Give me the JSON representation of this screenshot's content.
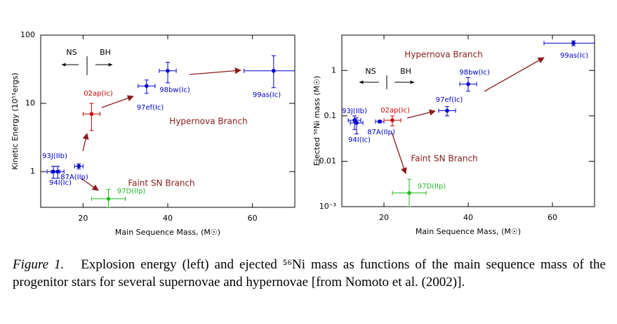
{
  "chart_data": [
    {
      "type": "scatter",
      "xlabel": "Main Sequence Mass, (M☉)",
      "ylabel": "Kinetic Energy (10⁵¹ergs)",
      "xlim": [
        10,
        70
      ],
      "ylim": [
        0.3,
        100
      ],
      "xticks": [
        20,
        40,
        60
      ],
      "yticks": [
        1,
        10,
        100
      ],
      "log_y": true,
      "annotations": [
        "NS",
        "BH",
        "Hypernova Branch",
        "Faint SN Branch"
      ],
      "point_labels": [
        "93J(IIb)",
        "94I(Ic)",
        "87A(IIp)",
        "02ap(Ic)",
        "97ef(Ic)",
        "98bw(Ic)",
        "99as(Ic)",
        "97D(IIp)"
      ],
      "colors": [
        "#0000cc",
        "#0000cc",
        "#0000cc",
        "#cc0000",
        "#0000cc",
        "#0000cc",
        "#0000cc",
        "#22bb22"
      ],
      "x": [
        13,
        14,
        19,
        22,
        35,
        40,
        65,
        26
      ],
      "values": [
        1,
        1,
        1.2,
        7,
        18,
        30,
        30,
        0.4
      ],
      "xerr": [
        1.5,
        1.5,
        1,
        2,
        2,
        2,
        7,
        4
      ],
      "yerr": [
        [
          0.2,
          0.2
        ],
        [
          0.2,
          0.2
        ],
        [
          0.1,
          0.1
        ],
        [
          3,
          3
        ],
        [
          4,
          4
        ],
        [
          10,
          10
        ],
        [
          13,
          20
        ],
        [
          0.1,
          0.15
        ]
      ]
    },
    {
      "type": "scatter",
      "xlabel": "Main Sequence Mass, (M☉)",
      "ylabel": "Ejected ⁵⁶Ni mass (M☉)",
      "xlim": [
        10,
        70
      ],
      "ylim": [
        0.001,
        6
      ],
      "xticks": [
        20,
        40,
        60
      ],
      "yticks": [
        {
          "value": 0.001,
          "label": "10⁻³"
        },
        0.01,
        0.1,
        1
      ],
      "log_y": true,
      "annotations": [
        "NS",
        "BH",
        "Hypernova Branch",
        "Faint SN Branch"
      ],
      "point_labels": [
        "93J(IIb)",
        "94I(Ic)",
        "87A(IIp)",
        "02ap(Ic)",
        "97ef(Ic)",
        "98bw(Ic)",
        "99as(Ic)",
        "97D(IIp)"
      ],
      "colors": [
        "#0000cc",
        "#0000cc",
        "#0000cc",
        "#cc0000",
        "#0000cc",
        "#0000cc",
        "#0000cc",
        "#22bb22"
      ],
      "x": [
        13,
        13.5,
        19,
        22,
        35,
        40,
        65,
        26
      ],
      "values": [
        0.08,
        0.07,
        0.075,
        0.08,
        0.13,
        0.5,
        4,
        0.002
      ],
      "xerr": [
        1.5,
        1.5,
        1,
        2,
        2,
        2,
        7,
        4
      ],
      "yerr": [
        [
          0.03,
          0.02
        ],
        [
          0.03,
          0.02
        ],
        [
          0.005,
          0.005
        ],
        [
          0.02,
          0.02
        ],
        [
          0.03,
          0.03
        ],
        [
          0.15,
          0.2
        ],
        [
          0.5,
          0.5
        ],
        [
          0.001,
          0.002
        ]
      ]
    }
  ],
  "caption": {
    "label": "Figure 1.",
    "text": "Explosion energy (left) and ejected ⁵⁶Ni mass as functions of the main sequence mass of the progenitor stars for several supernovae and hypernovae [from Nomoto et al. (2002)]."
  }
}
